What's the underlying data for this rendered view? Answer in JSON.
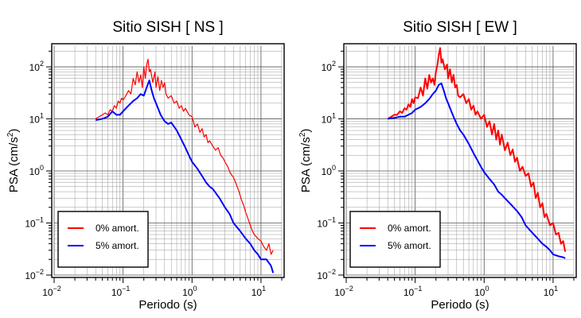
{
  "chart_data": [
    {
      "type": "line",
      "title": "Sitio SISH [ NS ]",
      "xlabel": "Periodo (s)",
      "ylabel_main": "PSA (cm/s",
      "ylabel_sup": "2",
      "ylabel_end": ")",
      "xscale": "log",
      "yscale": "log",
      "xlim": [
        0.01,
        20
      ],
      "ylim": [
        0.01,
        250
      ],
      "grid": true,
      "legend_position": "bottom-left",
      "x_tick_labels": [
        "10",
        "10",
        "10",
        "10"
      ],
      "x_tick_exponents": [
        "−2",
        "−1",
        "0",
        "1"
      ],
      "y_tick_labels": [
        "10",
        "10",
        "10",
        "10",
        "10"
      ],
      "y_tick_exponents": [
        "−2",
        "−1",
        "0",
        "1",
        "2"
      ],
      "series": [
        {
          "name": "0% amort.",
          "color": "#ff0000",
          "width": 1.2,
          "x": [
            0.04,
            0.045,
            0.05,
            0.055,
            0.06,
            0.065,
            0.07,
            0.075,
            0.08,
            0.085,
            0.09,
            0.095,
            0.1,
            0.11,
            0.12,
            0.13,
            0.14,
            0.15,
            0.16,
            0.17,
            0.18,
            0.19,
            0.2,
            0.21,
            0.22,
            0.23,
            0.24,
            0.25,
            0.27,
            0.29,
            0.3,
            0.32,
            0.34,
            0.36,
            0.38,
            0.4,
            0.42,
            0.45,
            0.5,
            0.55,
            0.6,
            0.65,
            0.7,
            0.75,
            0.8,
            0.9,
            1.0,
            1.1,
            1.2,
            1.3,
            1.4,
            1.5,
            1.6,
            1.7,
            1.8,
            2.0,
            2.2,
            2.4,
            2.6,
            2.8,
            3.0,
            3.3,
            3.6,
            4.0,
            4.4,
            4.8,
            5.2,
            5.6,
            6.0,
            6.5,
            7.0,
            7.5,
            8.0,
            9.0,
            10,
            11,
            12,
            13,
            14,
            15
          ],
          "y": [
            10,
            11,
            12,
            13,
            12,
            15,
            14,
            18,
            16,
            22,
            20,
            25,
            23,
            28,
            35,
            30,
            60,
            45,
            80,
            50,
            70,
            40,
            100,
            60,
            110,
            140,
            80,
            90,
            50,
            80,
            40,
            65,
            35,
            55,
            40,
            50,
            30,
            25,
            28,
            20,
            22,
            16,
            18,
            14,
            16,
            12,
            11,
            7,
            8,
            5.5,
            6.5,
            4.5,
            5,
            3.5,
            3.8,
            3,
            2.5,
            2.8,
            2,
            1.8,
            1.5,
            1.2,
            0.9,
            0.75,
            0.55,
            0.4,
            0.28,
            0.22,
            0.16,
            0.12,
            0.09,
            0.07,
            0.06,
            0.05,
            0.045,
            0.035,
            0.03,
            0.04,
            0.025,
            0.03
          ]
        },
        {
          "name": "5% amort.",
          "color": "#0000ff",
          "width": 2,
          "x": [
            0.04,
            0.05,
            0.06,
            0.07,
            0.08,
            0.09,
            0.1,
            0.12,
            0.14,
            0.16,
            0.18,
            0.2,
            0.22,
            0.24,
            0.26,
            0.28,
            0.3,
            0.35,
            0.4,
            0.45,
            0.5,
            0.6,
            0.7,
            0.8,
            0.9,
            1.0,
            1.2,
            1.4,
            1.6,
            1.8,
            2.0,
            2.5,
            3.0,
            3.5,
            4.0,
            5.0,
            6.0,
            7.0,
            8.0,
            9.0,
            10,
            12,
            14,
            15
          ],
          "y": [
            9.5,
            10,
            11,
            14,
            12,
            12,
            14,
            18,
            22,
            25,
            30,
            28,
            40,
            55,
            35,
            25,
            20,
            12,
            9,
            8,
            8.5,
            6,
            4,
            2.8,
            2,
            1.5,
            1.1,
            0.8,
            0.6,
            0.5,
            0.45,
            0.3,
            0.2,
            0.15,
            0.1,
            0.07,
            0.05,
            0.04,
            0.03,
            0.025,
            0.02,
            0.02,
            0.015,
            0.011
          ]
        }
      ]
    },
    {
      "type": "line",
      "title": "Sitio SISH [ EW ]",
      "xlabel": "Periodo (s)",
      "ylabel_main": "PSA (cm/s",
      "ylabel_sup": "2",
      "ylabel_end": ")",
      "xscale": "log",
      "yscale": "log",
      "xlim": [
        0.01,
        20
      ],
      "ylim": [
        0.01,
        250
      ],
      "grid": true,
      "legend_position": "bottom-left",
      "x_tick_labels": [
        "10",
        "10",
        "10",
        "10"
      ],
      "x_tick_exponents": [
        "−2",
        "−1",
        "0",
        "1"
      ],
      "y_tick_labels": [
        "10",
        "10",
        "10",
        "10",
        "10"
      ],
      "y_tick_exponents": [
        "−2",
        "−1",
        "0",
        "1",
        "2"
      ],
      "series": [
        {
          "name": "0% amort.",
          "color": "#ff0000",
          "width": 2,
          "x": [
            0.04,
            0.045,
            0.05,
            0.055,
            0.06,
            0.065,
            0.07,
            0.075,
            0.08,
            0.085,
            0.09,
            0.095,
            0.1,
            0.11,
            0.12,
            0.13,
            0.14,
            0.15,
            0.16,
            0.17,
            0.18,
            0.19,
            0.2,
            0.21,
            0.22,
            0.23,
            0.24,
            0.25,
            0.27,
            0.29,
            0.3,
            0.32,
            0.34,
            0.36,
            0.38,
            0.4,
            0.42,
            0.45,
            0.5,
            0.55,
            0.6,
            0.65,
            0.7,
            0.75,
            0.8,
            0.9,
            1.0,
            1.1,
            1.2,
            1.3,
            1.4,
            1.5,
            1.6,
            1.7,
            1.8,
            2.0,
            2.2,
            2.4,
            2.6,
            2.8,
            3.0,
            3.3,
            3.6,
            4.0,
            4.4,
            4.8,
            5.2,
            5.6,
            6.0,
            6.5,
            7.0,
            7.5,
            8.0,
            9.0,
            10,
            11,
            12,
            13,
            14,
            15
          ],
          "y": [
            10,
            11,
            12,
            12,
            14,
            13,
            16,
            15,
            19,
            17,
            24,
            20,
            26,
            25,
            40,
            28,
            60,
            38,
            70,
            50,
            60,
            45,
            80,
            110,
            170,
            230,
            120,
            140,
            90,
            110,
            60,
            90,
            50,
            70,
            40,
            45,
            28,
            26,
            30,
            20,
            24,
            15,
            18,
            12,
            14,
            10,
            12,
            7,
            9,
            5,
            8,
            4,
            6,
            3.2,
            5,
            2.5,
            3.5,
            2,
            2.6,
            1.5,
            1.8,
            1,
            1.2,
            0.8,
            0.9,
            0.5,
            0.6,
            0.3,
            0.38,
            0.2,
            0.24,
            0.13,
            0.15,
            0.09,
            0.1,
            0.06,
            0.065,
            0.04,
            0.045,
            0.028
          ]
        },
        {
          "name": "5% amort.",
          "color": "#0000ff",
          "width": 2,
          "x": [
            0.04,
            0.05,
            0.06,
            0.07,
            0.08,
            0.09,
            0.1,
            0.12,
            0.14,
            0.16,
            0.18,
            0.2,
            0.22,
            0.24,
            0.26,
            0.28,
            0.3,
            0.35,
            0.4,
            0.45,
            0.5,
            0.6,
            0.7,
            0.8,
            0.9,
            1.0,
            1.2,
            1.4,
            1.6,
            1.8,
            2.0,
            2.5,
            3.0,
            3.5,
            4.0,
            5.0,
            6.0,
            7.0,
            8.0,
            9.0,
            10,
            12,
            14,
            15
          ],
          "y": [
            10,
            10.5,
            11,
            11,
            12,
            13,
            15,
            17,
            20,
            24,
            30,
            35,
            45,
            48,
            35,
            25,
            20,
            12,
            8,
            6,
            5,
            3.3,
            2.2,
            1.6,
            1.2,
            0.95,
            0.7,
            0.55,
            0.4,
            0.35,
            0.3,
            0.22,
            0.17,
            0.13,
            0.09,
            0.065,
            0.05,
            0.04,
            0.035,
            0.03,
            0.025,
            0.023,
            0.022,
            0.021
          ]
        }
      ]
    }
  ]
}
